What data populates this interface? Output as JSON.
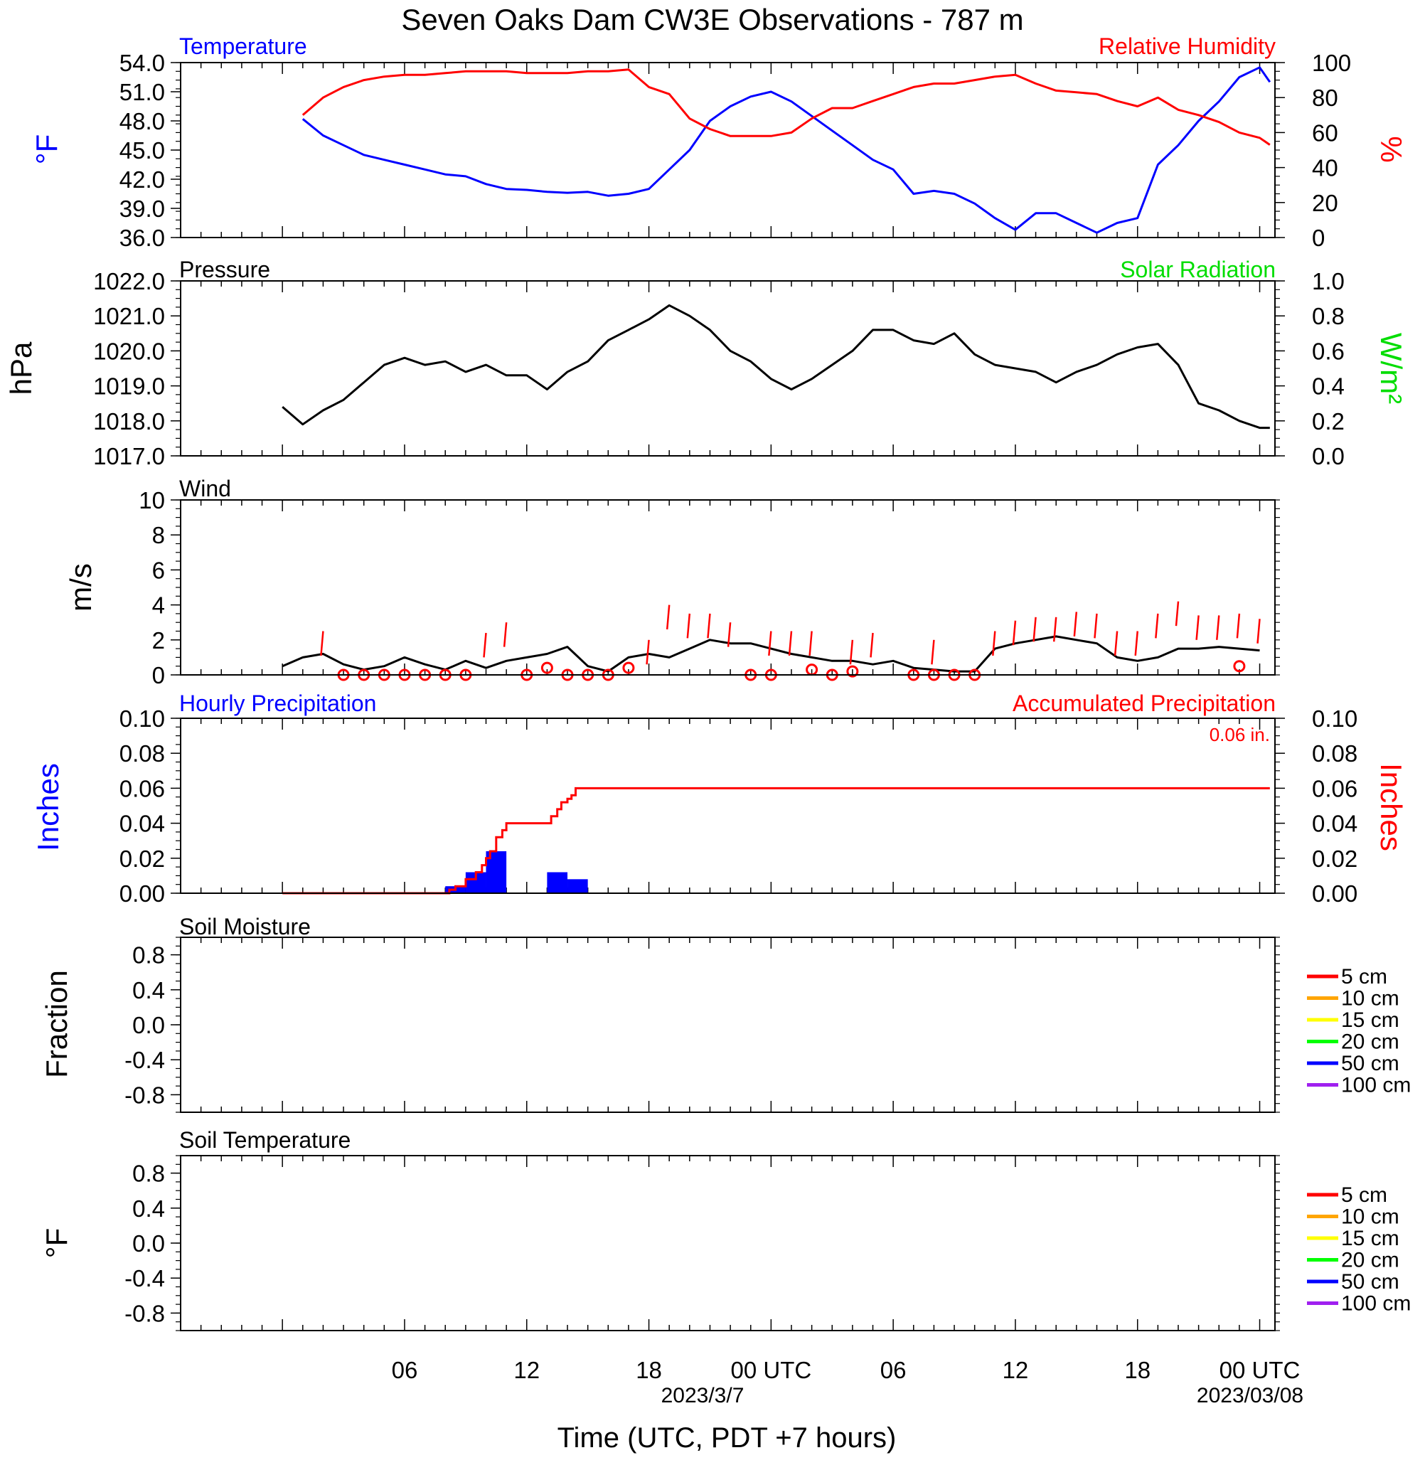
{
  "title": "Seven Oaks Dam CW3E Observations - 787 m",
  "xlabel": "Time (UTC, PDT +7 hours)",
  "x_ticks": [
    "06",
    "12",
    "18",
    "00 UTC",
    "06",
    "12",
    "18",
    "00 UTC"
  ],
  "x_dates": [
    "2023/3/7",
    "2023/03/08"
  ],
  "colors": {
    "blue": "#0000ff",
    "red": "#ff0000",
    "green": "#00dd00",
    "black": "#000000"
  },
  "chart_data": [
    {
      "type": "line",
      "panel": "temperature_rh",
      "title_left": "Temperature",
      "title_right": "Relative Humidity",
      "ylabel_left": "°F",
      "ylabel_right": "%",
      "ylim_left": [
        36,
        54
      ],
      "ylim_right": [
        0,
        100
      ],
      "yticks_left": [
        "54.0",
        "51.0",
        "48.0",
        "45.0",
        "42.0",
        "39.0",
        "36.0"
      ],
      "yticks_right": [
        "100",
        "80",
        "60",
        "40",
        "20",
        "0"
      ],
      "x_hours": [
        1,
        2,
        3,
        4,
        5,
        6,
        7,
        8,
        9,
        10,
        11,
        12,
        13,
        14,
        15,
        16,
        17,
        18,
        19,
        20,
        21,
        22,
        23,
        24,
        25,
        26,
        27,
        28,
        29,
        30,
        31,
        32,
        33,
        34,
        35,
        36,
        37,
        38,
        39,
        40,
        41,
        42,
        43,
        44,
        45,
        46,
        47,
        48,
        48.5
      ],
      "series": [
        {
          "name": "Temperature",
          "axis": "left",
          "color": "#0000ff",
          "values": [
            48.2,
            46.5,
            45.5,
            44.5,
            44.0,
            43.5,
            43.0,
            42.5,
            42.3,
            41.5,
            41.0,
            40.9,
            40.7,
            40.6,
            40.7,
            40.3,
            40.5,
            41.0,
            43.0,
            45.0,
            48.0,
            49.5,
            50.5,
            51.0,
            50.0,
            48.5,
            47.0,
            45.5,
            44.0,
            43.0,
            40.5,
            40.8,
            40.5,
            39.5,
            38.0,
            36.8,
            38.5,
            38.5,
            37.5,
            36.5,
            37.5,
            38.0,
            43.5,
            45.5,
            48.0,
            50.0,
            52.5,
            53.5,
            52.0
          ]
        },
        {
          "name": "Relative Humidity",
          "axis": "right",
          "color": "#ff0000",
          "values": [
            70,
            80,
            86,
            90,
            92,
            93,
            93,
            94,
            95,
            95,
            95,
            94,
            94,
            94,
            95,
            95,
            96,
            86,
            82,
            68,
            62,
            58,
            58,
            58,
            60,
            68,
            74,
            74,
            78,
            82,
            86,
            88,
            88,
            90,
            92,
            93,
            88,
            84,
            83,
            82,
            78,
            75,
            80,
            73,
            70,
            66,
            60,
            57,
            53
          ]
        }
      ]
    },
    {
      "type": "line",
      "panel": "pressure_solar",
      "title_left": "Pressure",
      "title_right": "Solar Radiation",
      "ylabel_left": "hPa",
      "ylabel_right": "W/m²",
      "ylim_left": [
        1017,
        1022
      ],
      "ylim_right": [
        0,
        1
      ],
      "yticks_left": [
        "1022.0",
        "1021.0",
        "1020.0",
        "1019.0",
        "1018.0",
        "1017.0"
      ],
      "yticks_right": [
        "1.0",
        "0.8",
        "0.6",
        "0.4",
        "0.2",
        "0.0"
      ],
      "x_hours": [
        0,
        1,
        2,
        3,
        4,
        5,
        6,
        7,
        8,
        9,
        10,
        11,
        12,
        13,
        14,
        15,
        16,
        17,
        18,
        19,
        20,
        21,
        22,
        23,
        24,
        25,
        26,
        27,
        28,
        29,
        30,
        31,
        32,
        33,
        34,
        35,
        36,
        37,
        38,
        39,
        40,
        41,
        42,
        43,
        44,
        45,
        46,
        47,
        48,
        48.5
      ],
      "series": [
        {
          "name": "Pressure",
          "axis": "left",
          "color": "#000000",
          "values": [
            1018.4,
            1017.9,
            1018.3,
            1018.6,
            1019.1,
            1019.6,
            1019.8,
            1019.6,
            1019.7,
            1019.4,
            1019.6,
            1019.3,
            1019.3,
            1018.9,
            1019.4,
            1019.7,
            1020.3,
            1020.6,
            1020.9,
            1021.3,
            1021.0,
            1020.6,
            1020.0,
            1019.7,
            1019.2,
            1018.9,
            1019.2,
            1019.6,
            1020.0,
            1020.6,
            1020.6,
            1020.3,
            1020.2,
            1020.5,
            1019.9,
            1019.6,
            1019.5,
            1019.4,
            1019.1,
            1019.4,
            1019.6,
            1019.9,
            1020.1,
            1020.2,
            1019.6,
            1018.5,
            1018.3,
            1018.0,
            1017.8,
            1017.8
          ]
        }
      ]
    },
    {
      "type": "line",
      "panel": "wind",
      "title_left": "Wind",
      "ylabel_left": "m/s",
      "ylim_left": [
        0,
        10
      ],
      "yticks_left": [
        "10",
        "8",
        "6",
        "4",
        "2",
        "0"
      ],
      "x_hours": [
        0,
        1,
        2,
        3,
        4,
        5,
        6,
        7,
        8,
        9,
        10,
        11,
        12,
        13,
        14,
        15,
        16,
        17,
        18,
        19,
        20,
        21,
        22,
        23,
        24,
        25,
        26,
        27,
        28,
        29,
        30,
        31,
        32,
        33,
        34,
        35,
        36,
        37,
        38,
        39,
        40,
        41,
        42,
        43,
        44,
        45,
        46,
        47,
        48
      ],
      "series": [
        {
          "name": "Wind speed",
          "axis": "left",
          "color": "#000000",
          "values": [
            0.5,
            1.0,
            1.2,
            0.6,
            0.3,
            0.5,
            1.0,
            0.6,
            0.3,
            0.8,
            0.4,
            0.8,
            1.0,
            1.2,
            1.6,
            0.5,
            0.2,
            1.0,
            1.2,
            1.0,
            1.5,
            2.0,
            1.8,
            1.8,
            1.5,
            1.2,
            1.0,
            0.8,
            0.8,
            0.6,
            0.8,
            0.4,
            0.3,
            0.2,
            0.2,
            1.5,
            1.8,
            2.0,
            2.2,
            2.0,
            1.8,
            1.0,
            0.8,
            1.0,
            1.5,
            1.5,
            1.6,
            1.5,
            1.4
          ]
        },
        {
          "name": "Wind gust",
          "axis": "left",
          "color": "#ff0000",
          "points": [
            [
              2,
              2.5
            ],
            [
              10,
              2.4
            ],
            [
              11,
              3.0
            ],
            [
              18,
              2.0
            ],
            [
              19,
              4.0
            ],
            [
              20,
              3.5
            ],
            [
              21,
              3.5
            ],
            [
              22,
              3.0
            ],
            [
              24,
              2.5
            ],
            [
              25,
              2.5
            ],
            [
              26,
              2.5
            ],
            [
              28,
              2.0
            ],
            [
              29,
              2.4
            ],
            [
              32,
              2.0
            ],
            [
              35,
              2.5
            ],
            [
              36,
              3.1
            ],
            [
              37,
              3.3
            ],
            [
              38,
              3.3
            ],
            [
              39,
              3.6
            ],
            [
              40,
              3.5
            ],
            [
              41,
              2.5
            ],
            [
              42,
              2.5
            ],
            [
              43,
              3.5
            ],
            [
              44,
              4.2
            ],
            [
              45,
              3.4
            ],
            [
              46,
              3.4
            ],
            [
              47,
              3.5
            ],
            [
              48,
              3.2
            ]
          ]
        },
        {
          "name": "Calm hour markers",
          "axis": "left",
          "color": "#ff0000",
          "points": [
            [
              3,
              0
            ],
            [
              4,
              0
            ],
            [
              5,
              0
            ],
            [
              6,
              0
            ],
            [
              7,
              0
            ],
            [
              8,
              0
            ],
            [
              9,
              0
            ],
            [
              12,
              0
            ],
            [
              13,
              0.4
            ],
            [
              14,
              0
            ],
            [
              15,
              0
            ],
            [
              16,
              0
            ],
            [
              17,
              0.4
            ],
            [
              23,
              0
            ],
            [
              24,
              0
            ],
            [
              26,
              0.3
            ],
            [
              27,
              0
            ],
            [
              28,
              0.2
            ],
            [
              31,
              0
            ],
            [
              32,
              0
            ],
            [
              33,
              0
            ],
            [
              34,
              0
            ],
            [
              47,
              0.5
            ]
          ]
        }
      ]
    },
    {
      "type": "bar",
      "panel": "precipitation",
      "title_left": "Hourly Precipitation",
      "title_right": "Accumulated Precipitation",
      "total_label": "0.06 in.",
      "ylabel_left": "Inches",
      "ylabel_right": "Inches",
      "ylim_left": [
        0,
        0.1
      ],
      "ylim_right": [
        0,
        0.1
      ],
      "yticks_left": [
        "0.10",
        "0.08",
        "0.06",
        "0.04",
        "0.02",
        "0.00"
      ],
      "yticks_right": [
        "0.10",
        "0.08",
        "0.06",
        "0.04",
        "0.02",
        "0.00"
      ],
      "bars": [
        {
          "start": 8,
          "end": 9,
          "value": 0.004
        },
        {
          "start": 9,
          "end": 10,
          "value": 0.012
        },
        {
          "start": 10,
          "end": 11,
          "value": 0.024
        },
        {
          "start": 13,
          "end": 14,
          "value": 0.012
        },
        {
          "start": 14,
          "end": 15,
          "value": 0.008
        }
      ],
      "accumulated": {
        "x_hours": [
          0,
          8,
          8.2,
          8.5,
          9,
          9.5,
          9.8,
          10.0,
          10.2,
          10.5,
          10.8,
          11.0,
          13.0,
          13.2,
          13.5,
          13.7,
          14.0,
          14.2,
          14.4,
          48.5
        ],
        "values": [
          0,
          0,
          0.002,
          0.004,
          0.008,
          0.012,
          0.016,
          0.02,
          0.024,
          0.032,
          0.036,
          0.04,
          0.04,
          0.044,
          0.048,
          0.052,
          0.054,
          0.056,
          0.06,
          0.06
        ]
      }
    },
    {
      "type": "line",
      "panel": "soil_moisture",
      "title_left": "Soil Moisture",
      "ylabel_left": "Fraction",
      "ylim_left": [
        -1,
        1
      ],
      "yticks_left": [
        "0.8",
        "0.4",
        "0.0",
        "-0.4",
        "-0.8"
      ],
      "legend": [
        {
          "label": "5 cm",
          "color": "#ff0000"
        },
        {
          "label": "10 cm",
          "color": "#ffa500"
        },
        {
          "label": "15 cm",
          "color": "#ffff00"
        },
        {
          "label": "20 cm",
          "color": "#00ff00"
        },
        {
          "label": "50 cm",
          "color": "#0000ff"
        },
        {
          "label": "100 cm",
          "color": "#a020f0"
        }
      ],
      "series": []
    },
    {
      "type": "line",
      "panel": "soil_temperature",
      "title_left": "Soil Temperature",
      "ylabel_left": "°F",
      "ylim_left": [
        -1,
        1
      ],
      "yticks_left": [
        "0.8",
        "0.4",
        "0.0",
        "-0.4",
        "-0.8"
      ],
      "legend": [
        {
          "label": "5 cm",
          "color": "#ff0000"
        },
        {
          "label": "10 cm",
          "color": "#ffa500"
        },
        {
          "label": "15 cm",
          "color": "#ffff00"
        },
        {
          "label": "20 cm",
          "color": "#00ff00"
        },
        {
          "label": "50 cm",
          "color": "#0000ff"
        },
        {
          "label": "100 cm",
          "color": "#a020f0"
        }
      ],
      "series": []
    }
  ]
}
